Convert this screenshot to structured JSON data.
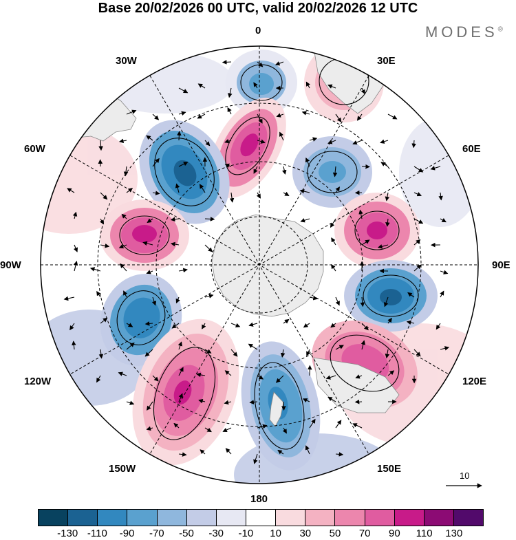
{
  "title": "Base 20/02/2026 00 UTC, valid 20/02/2026 12 UTC",
  "brand": "MODES",
  "brand_mark": "®",
  "map": {
    "projection": "south-polar-stereographic",
    "longitude_labels": {
      "lon_0": "0",
      "lon_30e": "30E",
      "lon_60e": "60E",
      "lon_90e": "90E",
      "lon_120e": "120E",
      "lon_150e": "150E",
      "lon_180": "180",
      "lon_150w": "150W",
      "lon_120w": "120W",
      "lon_90w": "90W",
      "lon_60w": "60W",
      "lon_30w": "30W"
    },
    "vector_reference_label": "10"
  },
  "colorbar": {
    "colors": [
      "#08425f",
      "#1b6292",
      "#3288bf",
      "#5aa1cf",
      "#8fb7dd",
      "#c3cce7",
      "#e7e8f3",
      "#ffffff",
      "#f9dbdf",
      "#f4b2c2",
      "#ec86ad",
      "#e05ca0",
      "#c81b89",
      "#8c0b74",
      "#520a6b"
    ],
    "tick_labels": [
      "-130",
      "-110",
      "-90",
      "-70",
      "-50",
      "-30",
      "-10",
      "10",
      "30",
      "50",
      "70",
      "90",
      "110",
      "130"
    ]
  },
  "legend_title": ""
}
